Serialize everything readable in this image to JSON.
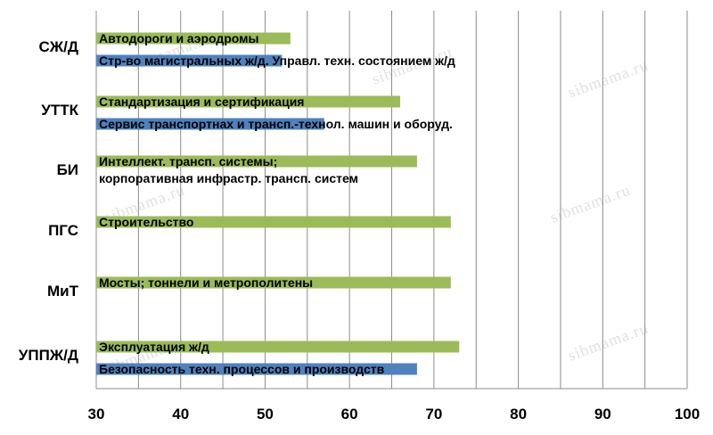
{
  "chart_data": {
    "type": "bar",
    "orientation": "horizontal",
    "categories": [
      "СЖ/Д",
      "УТТК",
      "БИ",
      "ПГС",
      "МиТ",
      "УППЖ/Д"
    ],
    "xlim": [
      30,
      100
    ],
    "xticks": [
      30,
      40,
      50,
      60,
      70,
      80,
      90,
      100
    ],
    "grid": true,
    "legend": "none",
    "colors": {
      "green": "#9bbb59",
      "blue": "#4f81bd"
    },
    "bars": [
      {
        "category": "СЖ/Д",
        "slot": "upper",
        "color": "green",
        "value": 53,
        "label": "Автодороги и аэродромы"
      },
      {
        "category": "СЖ/Д",
        "slot": "lower",
        "color": "blue",
        "value": 52,
        "label": "Стр-во магистральных ж/д. Управл. техн. состоянием ж/д"
      },
      {
        "category": "УТТК",
        "slot": "upper",
        "color": "green",
        "value": 66,
        "label": "Стандартизация и сертификация"
      },
      {
        "category": "УТТК",
        "slot": "lower",
        "color": "blue",
        "value": 57,
        "label": "Сервис транспортнах и трансп.-технол. машин и оборуд."
      },
      {
        "category": "БИ",
        "slot": "upper",
        "color": "green",
        "value": 68,
        "label": "Интеллект. трансп. системы;",
        "label2": "корпоративная инфрастр. трансп. систем"
      },
      {
        "category": "ПГС",
        "slot": "upper",
        "color": "green",
        "value": 72,
        "label": "Строительство"
      },
      {
        "category": "МиТ",
        "slot": "upper",
        "color": "green",
        "value": 72,
        "label": "Мосты; тоннели и метрополитены"
      },
      {
        "category": "УППЖ/Д",
        "slot": "upper",
        "color": "green",
        "value": 73,
        "label": "Эксплуатация ж/д"
      },
      {
        "category": "УППЖ/Д",
        "slot": "lower",
        "color": "blue",
        "value": 68,
        "label": "Безопасность техн. процессов и производств"
      }
    ],
    "watermark": "sibmama.ru"
  }
}
